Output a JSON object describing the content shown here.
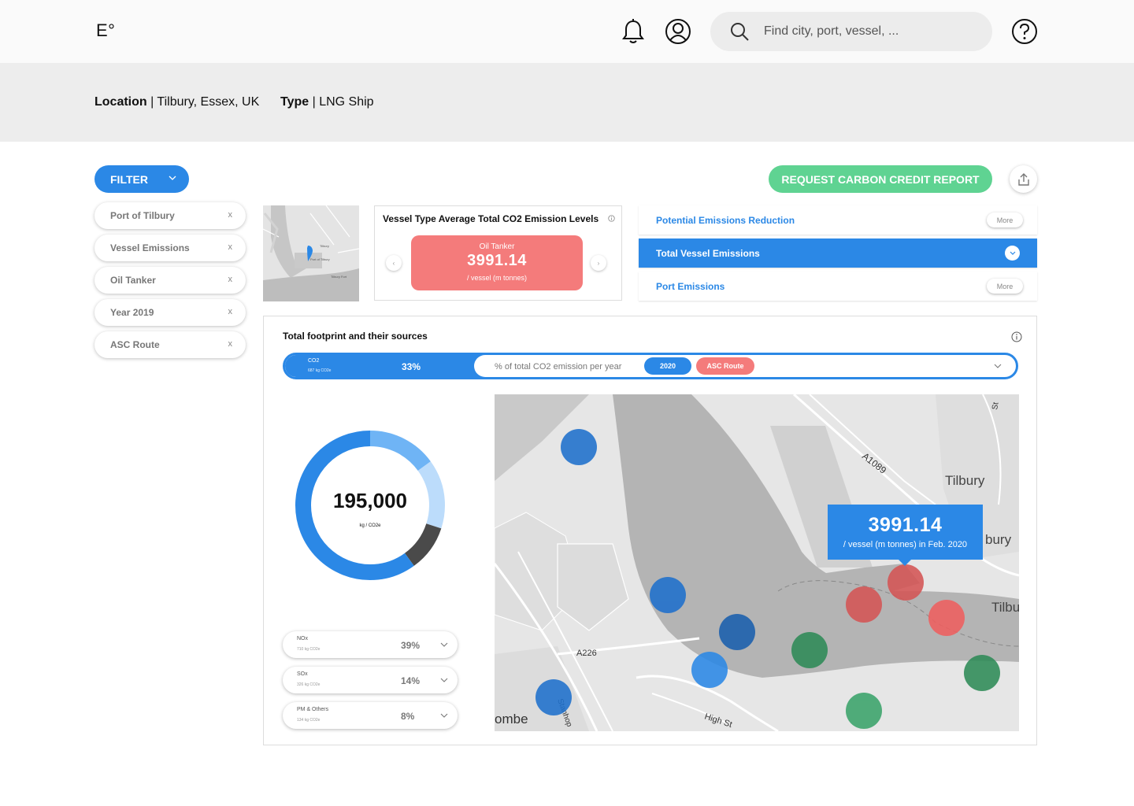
{
  "header": {
    "logo": "E°",
    "search_placeholder": "Find city, port, vessel, ..."
  },
  "info": {
    "location_label": "Location",
    "location_value": " | Tilbury, Essex, UK",
    "type_label": "Type",
    "type_value": " | LNG Ship"
  },
  "filter": {
    "label": "FILTER",
    "chips": [
      "Port of Tilbury",
      "Vessel Emissions",
      "Oil Tanker",
      "Year 2019",
      "ASC Route"
    ],
    "remove_glyph": "x"
  },
  "actions": {
    "request_label": "REQUEST CARBON CREDIT REPORT"
  },
  "minimap": {
    "labels": [
      "Tilbury",
      "Port of Tilbury",
      "Tilbury Fort"
    ]
  },
  "vessel_card": {
    "title": "Vessel Type Average Total CO2 Emission Levels",
    "type": "Oil Tanker",
    "value": "3991.14",
    "unit": "/ vessel (m tonnes)",
    "prev_glyph": "‹",
    "next_glyph": "›"
  },
  "right_list": {
    "items": [
      {
        "label": "Potential Emissions Reduction",
        "button": "More"
      },
      {
        "label": "Total Vessel Emissions"
      },
      {
        "label": "Port Emissions",
        "button": "More"
      }
    ]
  },
  "main": {
    "title": "Total footprint and their sources",
    "source_bar": {
      "name": "CO2",
      "sub": "687 kg CO2e",
      "percent": "33%",
      "metric": "% of total CO2 emission per year",
      "year_pill": "2020",
      "route_pill": "ASC Route"
    },
    "donut": {
      "value": "195,000",
      "unit": "kg / CO2e",
      "segments": [
        {
          "fraction": 0.6,
          "color": "#2b88e6"
        },
        {
          "fraction": 0.1,
          "color": "#4a4a4a"
        },
        {
          "fraction": 0.15,
          "color": "#bcdcfb"
        },
        {
          "fraction": 0.15,
          "color": "#6fb4f5"
        }
      ]
    },
    "stats": [
      {
        "name": "NOx",
        "sub": "710 kg CO2e",
        "percent": "39%"
      },
      {
        "name": "SOx",
        "sub": "326 kg CO2e",
        "percent": "14%"
      },
      {
        "name": "PM & Others",
        "sub": "134 kg CO2e",
        "percent": "8%"
      }
    ],
    "map": {
      "labels": {
        "tilbury_top": "Tilbury",
        "tilbury_right": "bury",
        "tilbury_edge": "Tilbu",
        "road_a1089": "A1089",
        "road_a226": "A226",
        "high_st": "High St",
        "combe": "ombe",
        "stanhope": "Stanhop",
        "st": "St"
      },
      "tooltip_value": "3991.14",
      "tooltip_unit": "/ vessel (m tonnes) in Feb. 2020"
    }
  },
  "colors": {
    "accent": "#2b88e6",
    "green": "#5fd392",
    "red": "#f47b7b"
  }
}
